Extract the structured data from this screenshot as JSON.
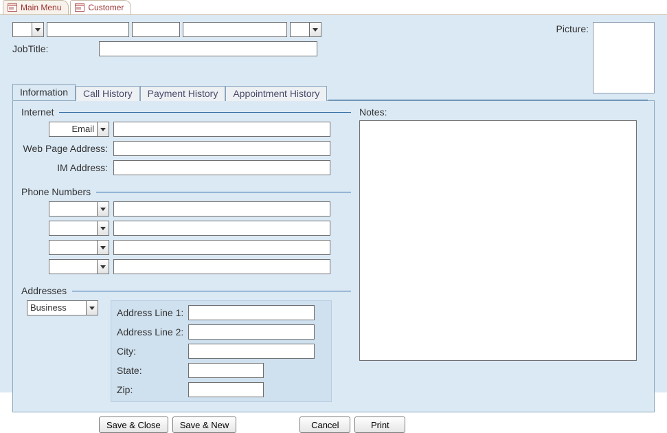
{
  "colors": {
    "form_bg": "#dbe9f4",
    "tab_border": "#8aa6bd",
    "rule": "#2f6aa3",
    "doc_tab_text": "#9b2f2f",
    "addr_panel_bg": "#cfe0ee"
  },
  "doc_tabs": [
    {
      "label": "Main Menu",
      "active": false
    },
    {
      "label": "Customer",
      "active": true
    }
  ],
  "header": {
    "title_combo": {
      "value": ""
    },
    "first_name": "",
    "middle": "",
    "last_name": "",
    "suffix_combo": {
      "value": ""
    },
    "jobtitle_label": "JobTitle:",
    "jobtitle_value": "",
    "picture_label": "Picture:"
  },
  "tabs": {
    "items": [
      "Information",
      "Call History",
      "Payment History",
      "Appointment History"
    ],
    "active_index": 0
  },
  "info": {
    "internet": {
      "legend": "Internet",
      "email_type": "Email",
      "email_value": "",
      "webpage_label": "Web Page Address:",
      "webpage_value": "",
      "im_label": "IM Address:",
      "im_value": ""
    },
    "phones": {
      "legend": "Phone Numbers",
      "rows": [
        {
          "type": "",
          "value": ""
        },
        {
          "type": "",
          "value": ""
        },
        {
          "type": "",
          "value": ""
        },
        {
          "type": "",
          "value": ""
        }
      ]
    },
    "addresses": {
      "legend": "Addresses",
      "type": "Business",
      "line1_label": "Address Line 1:",
      "line1": "",
      "line2_label": "Address Line 2:",
      "line2": "",
      "city_label": "City:",
      "city": "",
      "state_label": "State:",
      "state": "",
      "zip_label": "Zip:",
      "zip": ""
    },
    "notes_label": "Notes:",
    "notes_value": ""
  },
  "buttons": {
    "save_close": "Save & Close",
    "save_new": "Save & New",
    "cancel": "Cancel",
    "print": "Print"
  }
}
